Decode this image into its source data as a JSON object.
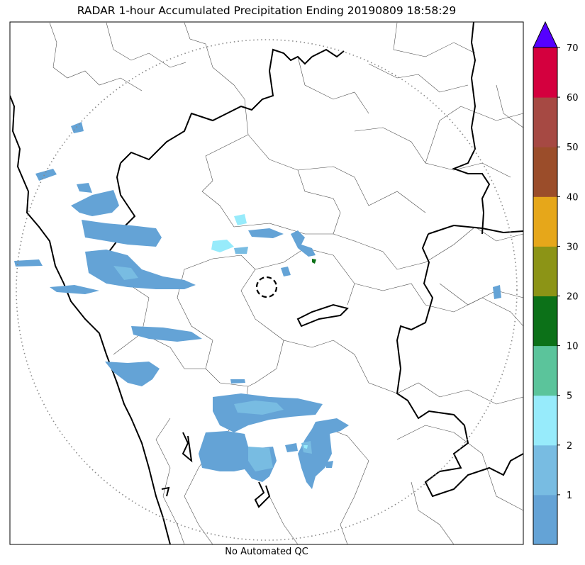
{
  "title": "RADAR 1-hour Accumulated Precipitation Ending 20190809 18:58:29",
  "footer": "No Automated QC",
  "colorbar": {
    "levels": [
      "1",
      "2",
      "5",
      "10",
      "20",
      "30",
      "40",
      "50",
      "60",
      "70"
    ],
    "bands": [
      {
        "color": "#64A3D6"
      },
      {
        "color": "#78BCE2"
      },
      {
        "color": "#97EBFB"
      },
      {
        "color": "#5BC49B"
      },
      {
        "color": "#0C7118"
      },
      {
        "color": "#8C9416"
      },
      {
        "color": "#E6A71A"
      },
      {
        "color": "#9B4D2A"
      },
      {
        "color": "#A64943"
      },
      {
        "color": "#D4003E"
      }
    ],
    "extend_color": "#5500FF"
  },
  "colors": {
    "precip": "#64A3D6",
    "precip_light": "#7BC0E3",
    "precip_cyan": "#97EBFB",
    "boundary": "#000000",
    "range_ring": "#888888"
  }
}
